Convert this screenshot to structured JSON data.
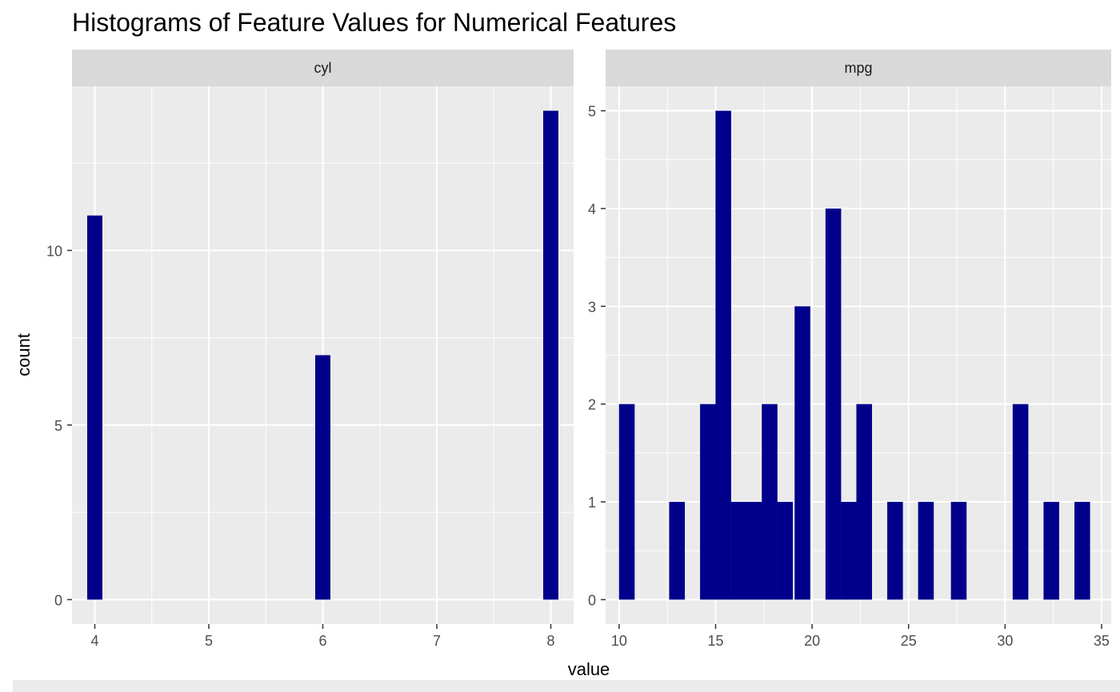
{
  "chart_data": {
    "type": "bar",
    "title": "Histograms of Feature Values for Numerical Features",
    "xlabel": "value",
    "ylabel": "count",
    "colors": {
      "bar": "#00008b",
      "panel_bg": "#ebebeb",
      "strip_bg": "#d9d9d9",
      "grid": "#ffffff",
      "text": "#4d4d4d",
      "title": "#000000"
    },
    "grid": true,
    "facets": [
      {
        "name": "cyl",
        "xlim": [
          3.8,
          8.2
        ],
        "ylim": [
          -0.7,
          14.7
        ],
        "xticks": [
          4,
          5,
          6,
          7,
          8
        ],
        "yticks": [
          0,
          5,
          10
        ],
        "bin_width": 0.1333,
        "bars": [
          {
            "x": 4,
            "count": 11
          },
          {
            "x": 6,
            "count": 7
          },
          {
            "x": 8,
            "count": 14
          }
        ]
      },
      {
        "name": "mpg",
        "xlim": [
          9.3,
          35.5
        ],
        "ylim": [
          -0.25,
          5.25
        ],
        "xticks": [
          10,
          15,
          20,
          25,
          30,
          35
        ],
        "yticks": [
          0,
          1,
          2,
          3,
          4,
          5
        ],
        "bin_width": 0.811,
        "bars": [
          {
            "x": 10.4,
            "count": 2
          },
          {
            "x": 13.0,
            "count": 1
          },
          {
            "x": 14.6,
            "count": 2
          },
          {
            "x": 15.4,
            "count": 5
          },
          {
            "x": 16.2,
            "count": 1
          },
          {
            "x": 17.0,
            "count": 1
          },
          {
            "x": 17.8,
            "count": 2
          },
          {
            "x": 18.6,
            "count": 1
          },
          {
            "x": 19.5,
            "count": 3
          },
          {
            "x": 21.1,
            "count": 4
          },
          {
            "x": 21.9,
            "count": 1
          },
          {
            "x": 22.7,
            "count": 2
          },
          {
            "x": 24.3,
            "count": 1
          },
          {
            "x": 25.9,
            "count": 1
          },
          {
            "x": 27.6,
            "count": 1
          },
          {
            "x": 30.8,
            "count": 2
          },
          {
            "x": 32.4,
            "count": 1
          },
          {
            "x": 34.0,
            "count": 1
          }
        ]
      }
    ]
  }
}
